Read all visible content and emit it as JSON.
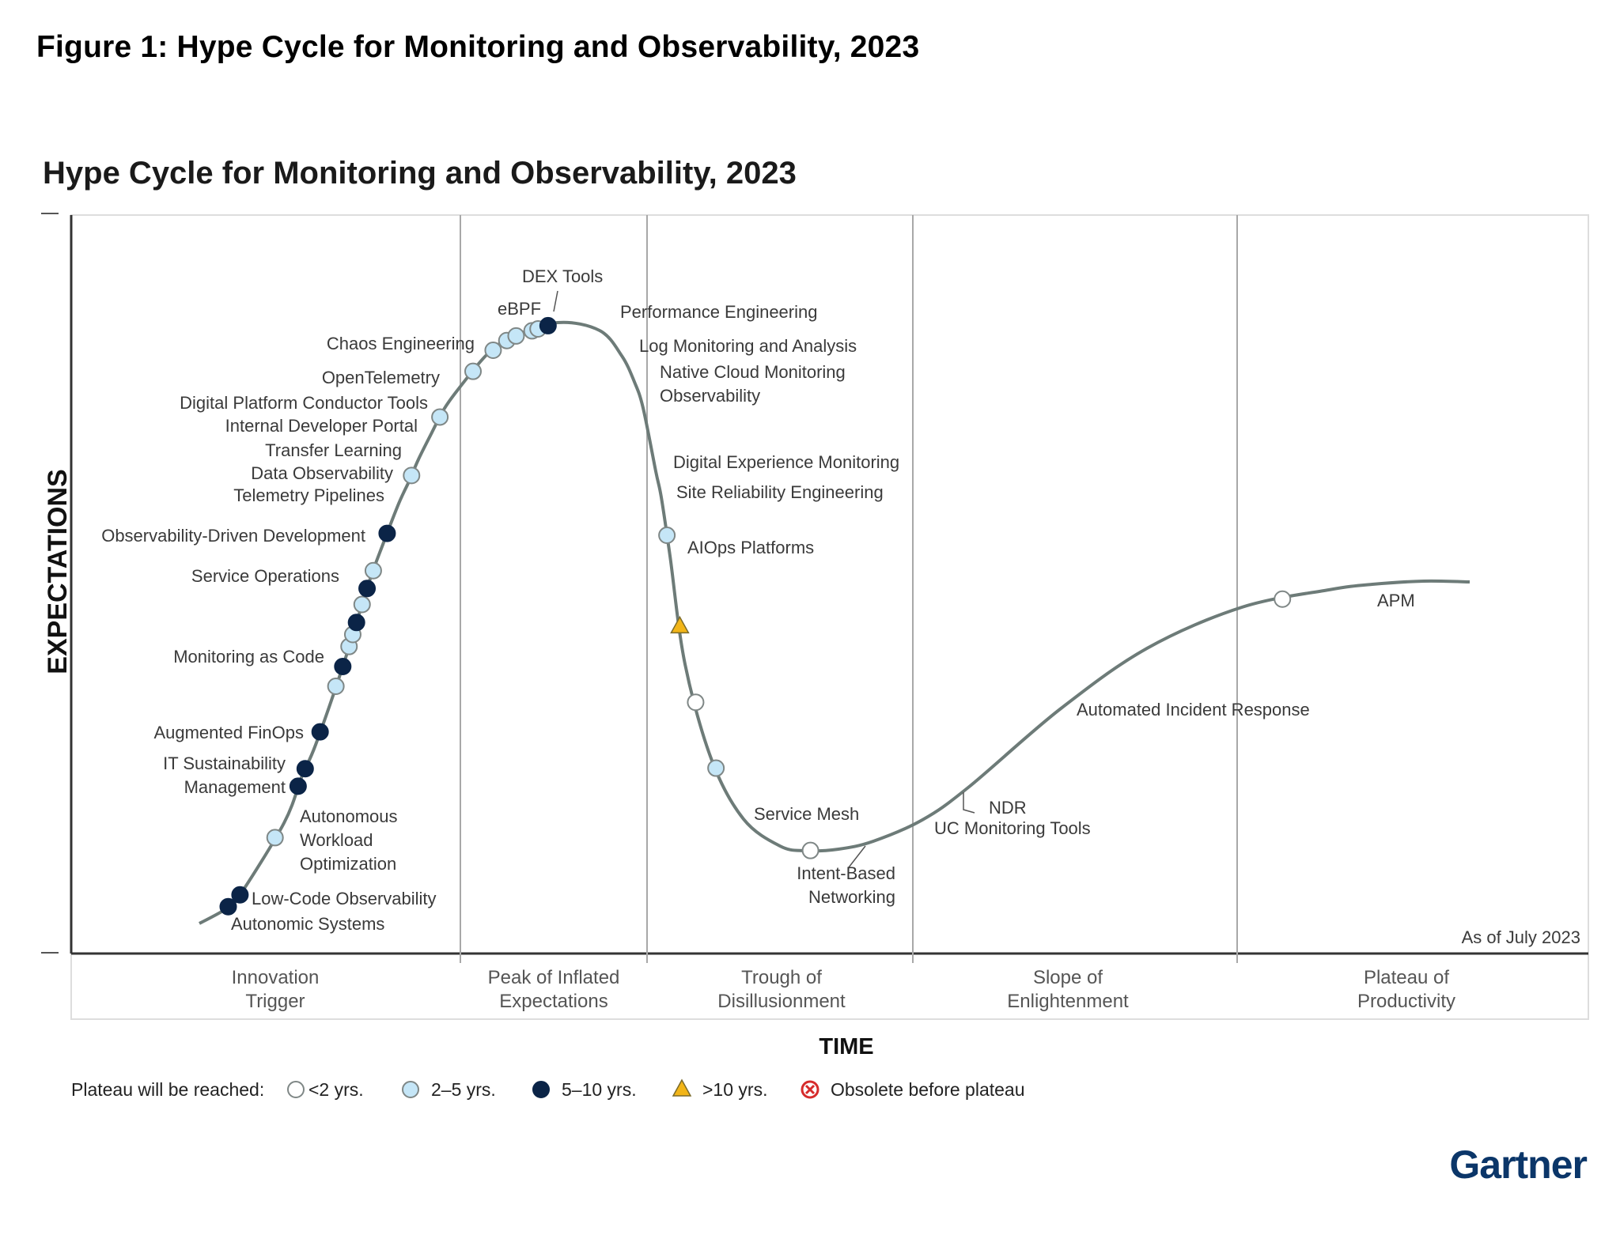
{
  "figure_title": "Figure 1: Hype Cycle for Monitoring and Observability, 2023",
  "chart_data": {
    "type": "scatter",
    "title": "Hype Cycle for Monitoring and Observability, 2023",
    "xlabel": "TIME",
    "ylabel": "EXPECTATIONS",
    "as_of": "As of July 2023",
    "phases": [
      {
        "label": "Innovation\nTrigger"
      },
      {
        "label": "Peak of Inflated\nExpectations"
      },
      {
        "label": "Trough of\nDisillusionment"
      },
      {
        "label": "Slope of\nEnlightenment"
      },
      {
        "label": "Plateau of\nProductivity"
      }
    ],
    "legend": {
      "title": "Plateau will be reached:",
      "items": [
        {
          "key": "lt2",
          "label": "<2 yrs.",
          "color": "#ffffff"
        },
        {
          "key": "2to5",
          "label": "2–5 yrs.",
          "color": "#c5e6f7"
        },
        {
          "key": "5to10",
          "label": "5–10 yrs.",
          "color": "#0b2447"
        },
        {
          "key": "gt10",
          "label": ">10 yrs.",
          "color": "#f2b518"
        },
        {
          "key": "obsolete",
          "label": "Obsolete before plateau",
          "color": "#d62b2b"
        }
      ]
    },
    "curve_color": "#6d7b78",
    "points": [
      {
        "name": "Autonomic Systems",
        "t": 0.016,
        "plateau": "5to10"
      },
      {
        "name": "Low-Code Observability",
        "t": 0.024,
        "plateau": "5to10"
      },
      {
        "name": "Autonomous\nWorkload\nOptimization",
        "t": 0.056,
        "plateau": "2to5"
      },
      {
        "name": "IT Sustainability\nManagement",
        "t": 0.083,
        "plateau": "5to10"
      },
      {
        "name": "Augmented FinOps",
        "t": 0.092,
        "plateau": "5to10"
      },
      {
        "name": "Monitoring as Code",
        "t": 0.111,
        "plateau": "5to10"
      },
      {
        "name": "Service Operations",
        "t": 0.134,
        "plateau": "2to5"
      },
      {
        "name": "Observability-Driven Development",
        "t": 0.144,
        "plateau": "5to10"
      },
      {
        "name": "Telemetry Pipelines",
        "t": 0.154,
        "plateau": "2to5"
      },
      {
        "name": "Data Observability",
        "t": 0.16,
        "plateau": "2to5"
      },
      {
        "name": "Transfer Learning",
        "t": 0.166,
        "plateau": "5to10"
      },
      {
        "name": "Internal Developer Portal",
        "t": 0.175,
        "plateau": "2to5"
      },
      {
        "name": "Digital Platform Conductor Tools",
        "t": 0.183,
        "plateau": "5to10"
      },
      {
        "name": "OpenTelemetry",
        "t": 0.192,
        "plateau": "2to5"
      },
      {
        "name": "Chaos Engineering",
        "t": 0.211,
        "plateau": "5to10"
      },
      {
        "name": "eBPF",
        "t": 0.241,
        "plateau": "2to5"
      },
      {
        "name": "DEX Tools",
        "t": 0.272,
        "plateau": "2to5"
      },
      {
        "name": "Performance Engineering",
        "t": 0.299,
        "plateau": "2to5"
      },
      {
        "name": "Log Monitoring and Analysis",
        "t": 0.313,
        "plateau": "2to5"
      },
      {
        "name": "Native Cloud Monitoring\nObservability",
        "t": 0.321,
        "plateau": "2to5"
      },
      {
        "name": "Native Cloud Monitoring Observability (2)",
        "t": 0.326,
        "plateau": "2to5"
      },
      {
        "name": "Digital Experience Monitoring",
        "t": 0.334,
        "plateau": "2to5"
      },
      {
        "name": "Site Reliability Engineering",
        "t": 0.337,
        "plateau": "2to5"
      },
      {
        "name": "AIOps Platforms",
        "t": 0.342,
        "plateau": "5to10"
      },
      {
        "name": "Service Mesh",
        "t": 0.472,
        "plateau": "2to5"
      },
      {
        "name": "Intent-Based\nNetworking",
        "t": 0.516,
        "plateau": "gt10"
      },
      {
        "name": "UC Monitoring Tools",
        "t": 0.553,
        "plateau": "lt2"
      },
      {
        "name": "NDR",
        "t": 0.586,
        "plateau": "2to5"
      },
      {
        "name": "Automated Incident Response",
        "t": 0.65,
        "plateau": "lt2"
      },
      {
        "name": "APM",
        "t": 0.91,
        "plateau": "lt2"
      }
    ]
  },
  "brand": "Gartner"
}
